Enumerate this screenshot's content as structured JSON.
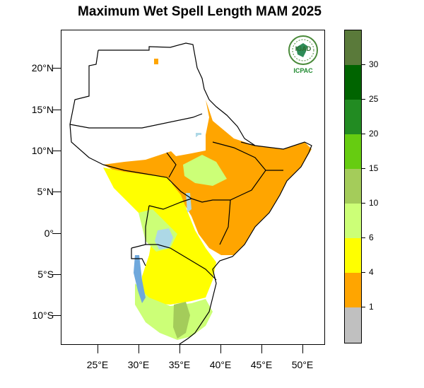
{
  "title": "Maximum Wet Spell Length MAM 2025",
  "logo": {
    "text_top": "IGAD",
    "text_bottom": "ICPAC"
  },
  "lat_labels": [
    "20°N",
    "15°N",
    "10°N",
    "5°N",
    "0°",
    "5°S",
    "10°S"
  ],
  "lon_labels": [
    "25°E",
    "30°E",
    "35°E",
    "40°E",
    "45°E",
    "50°E"
  ],
  "colorbar": {
    "labels": [
      "30",
      "25",
      "20",
      "15",
      "10",
      "6",
      "4",
      "1"
    ],
    "colors": [
      "#5a7a3a",
      "#006400",
      "#228b22",
      "#66cc11",
      "#a4cc5a",
      "#ccff77",
      "#ffff00",
      "#ffa500",
      "#c0c0c0"
    ]
  }
}
